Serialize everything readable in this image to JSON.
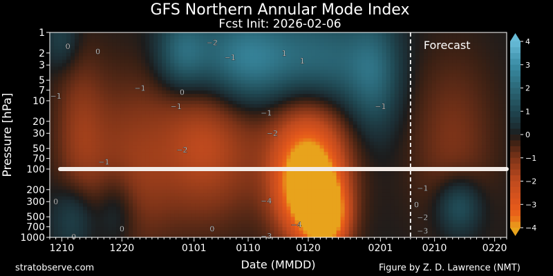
{
  "header": {
    "title": "GFS Northern Annular Mode Index",
    "subtitle": "Fcst Init: 2026-02-06"
  },
  "footer": {
    "left": "stratobserve.com",
    "right": "Figure by Z. D. Lawrence (NMT)"
  },
  "chart_data": {
    "type": "heatmap",
    "title": "GFS Northern Annular Mode Index",
    "subtitle": "Fcst Init: 2026-02-06",
    "xlabel": "Date (MMDD)",
    "ylabel": "Pressure [hPa]",
    "x_range_days_from_1210": [
      -2,
      74
    ],
    "x_ticks": [
      {
        "label": "1210",
        "day": 0
      },
      {
        "label": "1220",
        "day": 10
      },
      {
        "label": "0101",
        "day": 22
      },
      {
        "label": "0110",
        "day": 31
      },
      {
        "label": "0120",
        "day": 41
      },
      {
        "label": "0201",
        "day": 53
      },
      {
        "label": "0210",
        "day": 62
      },
      {
        "label": "0220",
        "day": 72
      }
    ],
    "y_scale": "log",
    "ylim": [
      1000,
      1
    ],
    "y_ticks": [
      {
        "label": "1",
        "value": 1
      },
      {
        "label": "2",
        "value": 2
      },
      {
        "label": "3",
        "value": 3
      },
      {
        "label": "5",
        "value": 5
      },
      {
        "label": "7",
        "value": 7
      },
      {
        "label": "10",
        "value": 10
      },
      {
        "label": "20",
        "value": 20
      },
      {
        "label": "30",
        "value": 30
      },
      {
        "label": "50",
        "value": 50
      },
      {
        "label": "70",
        "value": 70
      },
      {
        "label": "100",
        "value": 100
      },
      {
        "label": "200",
        "value": 200
      },
      {
        "label": "300",
        "value": 300
      },
      {
        "label": "500",
        "value": 500
      },
      {
        "label": "700",
        "value": 700
      },
      {
        "label": "1000",
        "value": 1000
      }
    ],
    "colorbar": {
      "range": [
        -4,
        4
      ],
      "ticks": [
        "4",
        "3",
        "2",
        "1",
        "0",
        "−1",
        "−2",
        "−3",
        "−4"
      ],
      "colors": [
        {
          "v": -4,
          "c": "#e8a31c"
        },
        {
          "v": -3.5,
          "c": "#ea6418"
        },
        {
          "v": -3,
          "c": "#e0561c"
        },
        {
          "v": -2,
          "c": "#bf4a1e"
        },
        {
          "v": -1,
          "c": "#7c3318"
        },
        {
          "v": -0.3,
          "c": "#3a2014"
        },
        {
          "v": 0,
          "c": "#1c1c1c"
        },
        {
          "v": 0.3,
          "c": "#1c2c32"
        },
        {
          "v": 1,
          "c": "#1f4650"
        },
        {
          "v": 2,
          "c": "#2b6878"
        },
        {
          "v": 3,
          "c": "#3a8ca4"
        },
        {
          "v": 4,
          "c": "#68bcd8"
        }
      ]
    },
    "forecast_start_day": 58,
    "forecast_label": "Forecast",
    "reference_line_hpa": 100,
    "anomaly_centers": [
      {
        "day": 41,
        "p": 200,
        "value": -4.3,
        "sx": 3.5,
        "sy": 0.5
      },
      {
        "day": 44,
        "p": 500,
        "value": -4.1,
        "sx": 2.5,
        "sy": 0.35
      },
      {
        "day": 41,
        "p": 40,
        "value": -2.5,
        "sx": 5,
        "sy": 0.8
      },
      {
        "day": 24,
        "p": 40,
        "value": -2.0,
        "sx": 6,
        "sy": 0.8
      },
      {
        "day": 11,
        "p": 100,
        "value": -1.3,
        "sx": 5,
        "sy": 0.9
      },
      {
        "day": 3,
        "p": 30,
        "value": -1.2,
        "sx": 3,
        "sy": 0.8
      },
      {
        "day": 65,
        "p": 40,
        "value": -1.0,
        "sx": 5,
        "sy": 0.9
      },
      {
        "day": 30,
        "p": 2.5,
        "value": 2.8,
        "sx": 6,
        "sy": 0.5
      },
      {
        "day": 43,
        "p": 3,
        "value": 2.4,
        "sx": 6,
        "sy": 0.55
      },
      {
        "day": 20,
        "p": 2,
        "value": 1.9,
        "sx": 3,
        "sy": 0.4
      },
      {
        "day": 52,
        "p": 4,
        "value": 1.6,
        "sx": 3,
        "sy": 0.6
      },
      {
        "day": 66,
        "p": 350,
        "value": 1.7,
        "sx": 2.6,
        "sy": 0.3
      },
      {
        "day": 2,
        "p": 500,
        "value": 1.2,
        "sx": 2.5,
        "sy": 0.35
      },
      {
        "day": 9,
        "p": 400,
        "value": 1.1,
        "sx": 2.5,
        "sy": 0.4
      },
      {
        "day": 0,
        "p": 1.3,
        "value": 0.9,
        "sx": 2,
        "sy": 0.3
      }
    ],
    "contour_labels": [
      {
        "text": "0",
        "day": 1,
        "p": 1.6
      },
      {
        "text": "0",
        "day": 6,
        "p": 1.9
      },
      {
        "text": "−2",
        "day": 25,
        "p": 1.4
      },
      {
        "text": "−1",
        "day": 28,
        "p": 2.3
      },
      {
        "text": "1",
        "day": 37,
        "p": 2.0
      },
      {
        "text": "1",
        "day": 40,
        "p": 2.6
      },
      {
        "text": "−1",
        "day": 13,
        "p": 6.5
      },
      {
        "text": "0",
        "day": 20,
        "p": 7.5
      },
      {
        "text": "−1",
        "day": -1,
        "p": 8.5
      },
      {
        "text": "−1",
        "day": 19,
        "p": 12
      },
      {
        "text": "−1",
        "day": 34,
        "p": 15
      },
      {
        "text": "−2",
        "day": 35,
        "p": 30
      },
      {
        "text": "−2",
        "day": 20,
        "p": 52
      },
      {
        "text": "−1",
        "day": 7,
        "p": 78
      },
      {
        "text": "−1",
        "day": 53,
        "p": 12
      },
      {
        "text": "0",
        "day": -1,
        "p": 300
      },
      {
        "text": "0",
        "day": 10,
        "p": 750
      },
      {
        "text": "0",
        "day": 2,
        "p": 980
      },
      {
        "text": "0",
        "day": 25,
        "p": 750
      },
      {
        "text": "−4",
        "day": 34,
        "p": 290
      },
      {
        "text": "−4",
        "day": 39,
        "p": 650
      },
      {
        "text": "−3",
        "day": 34,
        "p": 960
      },
      {
        "text": "−1",
        "day": 60,
        "p": 190
      },
      {
        "text": "0",
        "day": 59,
        "p": 330
      },
      {
        "text": "−2",
        "day": 60,
        "p": 510
      },
      {
        "text": "−3",
        "day": 60,
        "p": 800
      }
    ]
  }
}
